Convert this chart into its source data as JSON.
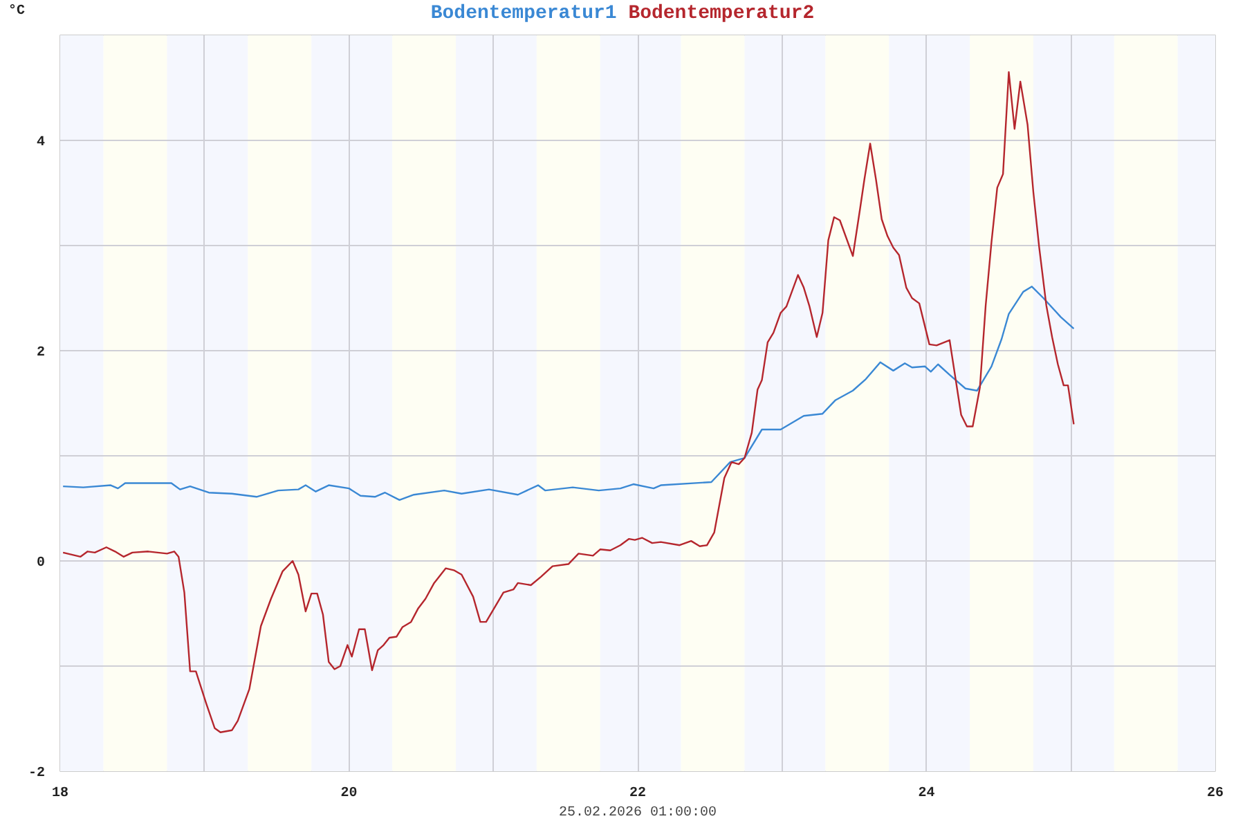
{
  "chart_data": {
    "type": "line",
    "xlabel": "25.02.2026 01:00:00",
    "ylabel": "°C",
    "grid": true,
    "xlim": [
      18,
      26
    ],
    "ylim": [
      -2,
      5
    ],
    "xticks": [
      18,
      {
        "value": 19,
        "label": null
      },
      20,
      {
        "value": 21,
        "label": null
      },
      22,
      {
        "value": 23,
        "label": null
      },
      24,
      {
        "value": 25,
        "label": null
      },
      26
    ],
    "yticks": [
      -2,
      {
        "value": -1,
        "label": null
      },
      0,
      {
        "value": 1,
        "label": null
      },
      2,
      {
        "value": 3,
        "label": null
      },
      4,
      {
        "value": 5,
        "label": null
      }
    ],
    "bands": [
      {
        "axis": "x",
        "from": 18,
        "to": 18.3,
        "color": "#f5f7fe"
      },
      {
        "axis": "x",
        "from": 18.3,
        "to": 18.74,
        "color": "#fefef3"
      },
      {
        "axis": "x",
        "from": 18.74,
        "to": 19.3,
        "color": "#f5f7fe"
      },
      {
        "axis": "x",
        "from": 19.3,
        "to": 19.74,
        "color": "#fefef3"
      },
      {
        "axis": "x",
        "from": 19.74,
        "to": 20.3,
        "color": "#f5f7fe"
      },
      {
        "axis": "x",
        "from": 20.3,
        "to": 20.74,
        "color": "#fefef3"
      },
      {
        "axis": "x",
        "from": 20.74,
        "to": 21.3,
        "color": "#f5f7fe"
      },
      {
        "axis": "x",
        "from": 21.3,
        "to": 21.74,
        "color": "#fefef3"
      },
      {
        "axis": "x",
        "from": 21.74,
        "to": 22.3,
        "color": "#f5f7fe"
      },
      {
        "axis": "x",
        "from": 22.3,
        "to": 22.74,
        "color": "#fefef3"
      },
      {
        "axis": "x",
        "from": 22.74,
        "to": 23.3,
        "color": "#f5f7fe"
      },
      {
        "axis": "x",
        "from": 23.3,
        "to": 23.74,
        "color": "#fefef3"
      },
      {
        "axis": "x",
        "from": 23.74,
        "to": 24.3,
        "color": "#f5f7fe"
      },
      {
        "axis": "x",
        "from": 24.3,
        "to": 24.74,
        "color": "#fefef3"
      },
      {
        "axis": "x",
        "from": 24.74,
        "to": 25.3,
        "color": "#f5f7fe"
      },
      {
        "axis": "x",
        "from": 25.3,
        "to": 25.74,
        "color": "#fefef3"
      },
      {
        "axis": "x",
        "from": 25.74,
        "to": 26,
        "color": "#f5f7fe"
      }
    ],
    "series": [
      {
        "name": "Bodentemperatur1",
        "color": "#3a88d4",
        "x": [
          18.02,
          18.16,
          18.35,
          18.4,
          18.45,
          18.77,
          18.83,
          18.9,
          19.03,
          19.19,
          19.36,
          19.51,
          19.65,
          19.7,
          19.77,
          19.86,
          20.0,
          20.08,
          20.18,
          20.25,
          20.35,
          20.45,
          20.66,
          20.78,
          20.97,
          21.17,
          21.31,
          21.36,
          21.55,
          21.73,
          21.88,
          21.97,
          22.11,
          22.16,
          22.51,
          22.64,
          22.74,
          22.86,
          22.99,
          23.15,
          23.28,
          23.37,
          23.49,
          23.58,
          23.68,
          23.77,
          23.85,
          23.9,
          23.99,
          24.03,
          24.08,
          24.16,
          24.27,
          24.35,
          24.45,
          24.52,
          24.57,
          24.67,
          24.73,
          24.81,
          24.93,
          25.02
        ],
        "values": [
          0.71,
          0.7,
          0.72,
          0.69,
          0.74,
          0.74,
          0.68,
          0.71,
          0.65,
          0.64,
          0.61,
          0.67,
          0.68,
          0.72,
          0.66,
          0.72,
          0.69,
          0.62,
          0.61,
          0.65,
          0.58,
          0.63,
          0.67,
          0.64,
          0.68,
          0.63,
          0.72,
          0.67,
          0.7,
          0.67,
          0.69,
          0.73,
          0.69,
          0.72,
          0.75,
          0.94,
          0.98,
          1.25,
          1.25,
          1.38,
          1.4,
          1.53,
          1.62,
          1.73,
          1.89,
          1.81,
          1.88,
          1.84,
          1.85,
          1.8,
          1.87,
          1.77,
          1.64,
          1.62,
          1.85,
          2.11,
          2.35,
          2.56,
          2.61,
          2.5,
          2.32,
          2.21
        ]
      },
      {
        "name": "Bodentemperatur2",
        "color": "#b5262d",
        "x": [
          18.02,
          18.14,
          18.19,
          18.24,
          18.32,
          18.38,
          18.44,
          18.5,
          18.61,
          18.74,
          18.79,
          18.82,
          18.86,
          18.9,
          18.94,
          19.01,
          19.07,
          19.11,
          19.19,
          19.23,
          19.31,
          19.39,
          19.46,
          19.54,
          19.61,
          19.65,
          19.7,
          19.74,
          19.78,
          19.82,
          19.86,
          19.9,
          19.94,
          19.99,
          20.02,
          20.07,
          20.11,
          20.16,
          20.2,
          20.24,
          20.28,
          20.33,
          20.37,
          20.43,
          20.48,
          20.53,
          20.59,
          20.67,
          20.73,
          20.78,
          20.86,
          20.91,
          20.95,
          21.07,
          21.14,
          21.17,
          21.26,
          21.33,
          21.41,
          21.52,
          21.59,
          21.69,
          21.74,
          21.81,
          21.88,
          21.94,
          21.98,
          22.03,
          22.1,
          22.16,
          22.29,
          22.37,
          22.43,
          22.48,
          22.53,
          22.6,
          22.65,
          22.7,
          22.74,
          22.79,
          22.83,
          22.86,
          22.9,
          22.94,
          22.99,
          23.03,
          23.11,
          23.15,
          23.19,
          23.24,
          23.28,
          23.32,
          23.36,
          23.4,
          23.49,
          23.54,
          23.57,
          23.61,
          23.65,
          23.69,
          23.73,
          23.77,
          23.81,
          23.86,
          23.9,
          23.95,
          24.02,
          24.07,
          24.16,
          24.24,
          24.28,
          24.32,
          24.37,
          24.41,
          24.45,
          24.49,
          24.53,
          24.57,
          24.61,
          24.65,
          24.7,
          24.74,
          24.78,
          24.83,
          24.87,
          24.91,
          24.95,
          24.98,
          25.02
        ],
        "values": [
          0.08,
          0.04,
          0.09,
          0.08,
          0.13,
          0.09,
          0.04,
          0.08,
          0.09,
          0.07,
          0.09,
          0.04,
          -0.3,
          -1.05,
          -1.05,
          -1.35,
          -1.59,
          -1.63,
          -1.61,
          -1.52,
          -1.22,
          -0.62,
          -0.36,
          -0.1,
          0.0,
          -0.13,
          -0.48,
          -0.31,
          -0.31,
          -0.51,
          -0.96,
          -1.03,
          -1.0,
          -0.8,
          -0.91,
          -0.65,
          -0.65,
          -1.04,
          -0.85,
          -0.8,
          -0.73,
          -0.72,
          -0.63,
          -0.58,
          -0.45,
          -0.36,
          -0.21,
          -0.07,
          -0.09,
          -0.13,
          -0.34,
          -0.58,
          -0.58,
          -0.3,
          -0.27,
          -0.21,
          -0.23,
          -0.15,
          -0.05,
          -0.03,
          0.07,
          0.05,
          0.11,
          0.1,
          0.15,
          0.21,
          0.2,
          0.22,
          0.17,
          0.18,
          0.15,
          0.19,
          0.14,
          0.15,
          0.27,
          0.79,
          0.94,
          0.92,
          0.98,
          1.22,
          1.63,
          1.72,
          2.08,
          2.17,
          2.36,
          2.42,
          2.72,
          2.6,
          2.42,
          2.13,
          2.36,
          3.05,
          3.27,
          3.24,
          2.9,
          3.35,
          3.63,
          3.97,
          3.63,
          3.25,
          3.09,
          2.98,
          2.91,
          2.6,
          2.5,
          2.45,
          2.06,
          2.05,
          2.1,
          1.39,
          1.28,
          1.28,
          1.65,
          2.43,
          3.03,
          3.55,
          3.68,
          4.65,
          4.11,
          4.56,
          4.15,
          3.51,
          2.99,
          2.43,
          2.13,
          1.87,
          1.67,
          1.67,
          1.3
        ]
      }
    ]
  }
}
